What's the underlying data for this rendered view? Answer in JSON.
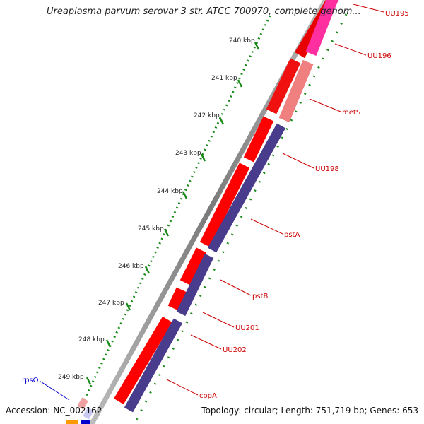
{
  "title": "Ureaplasma parvum serovar 3 str. ATCC 700970, complete genom...",
  "accession": "Accession: NC_002162",
  "topology": "Topology: circular; Length: 751,719 bp; Genes: 653",
  "ticks": [
    "240 kbp",
    "241 kbp",
    "242 kbp",
    "243 kbp",
    "244 kbp",
    "245 kbp",
    "246 kbp",
    "247 kbp",
    "248 kbp",
    "249 kbp"
  ],
  "genes": [
    {
      "name": "UU195",
      "color": "#cc0000"
    },
    {
      "name": "UU196",
      "color": "#cc0000"
    },
    {
      "name": "metS",
      "color": "#cc0000"
    },
    {
      "name": "UU198",
      "color": "#cc0000"
    },
    {
      "name": "pstA",
      "color": "#cc0000"
    },
    {
      "name": "pstB",
      "color": "#cc0000"
    },
    {
      "name": "UU201",
      "color": "#cc0000"
    },
    {
      "name": "UU202",
      "color": "#cc0000"
    },
    {
      "name": "copA",
      "color": "#cc0000"
    },
    {
      "name": "rpsO",
      "color": "#0000cc"
    }
  ],
  "colors": {
    "forward_cds": "#ff0000",
    "reverse_cds": "#4a3c8c",
    "highlight_magenta": "#ff2fa0",
    "highlight_pink": "#f08080",
    "tick_green": "#1a8a1a",
    "backbone": "#8c8c8c"
  }
}
